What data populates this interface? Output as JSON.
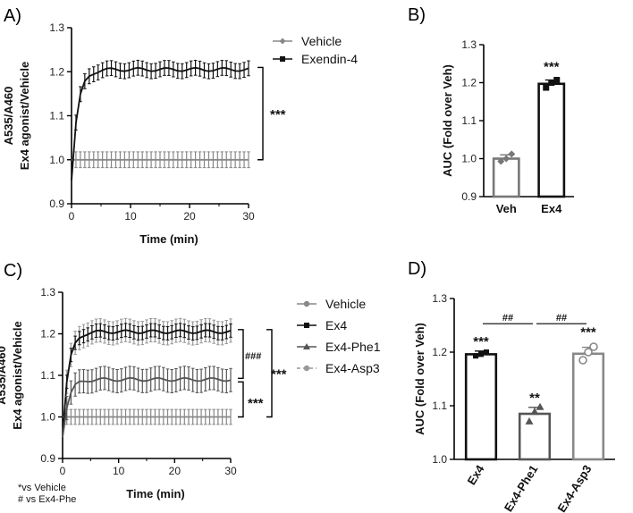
{
  "chart_data": [
    {
      "id": "A",
      "panel_label": "A)",
      "type": "line",
      "xlabel": "Time (min)",
      "ylabel_lines": [
        "A535/A460",
        "Ex4 agonist/Vehicle"
      ],
      "xlim": [
        0,
        30
      ],
      "ylim": [
        0.9,
        1.3
      ],
      "xticks": [
        "0",
        "10",
        "20",
        "30"
      ],
      "yticks": [
        "0.9",
        "1.0",
        "1.1",
        "1.2",
        "1.3"
      ],
      "legend": [
        {
          "label": "Vehicle",
          "color": "#888888",
          "marker": "diamond"
        },
        {
          "label": "Exendin-4",
          "color": "#111111",
          "marker": "square"
        }
      ],
      "series": [
        {
          "name": "Vehicle",
          "kind": "flat",
          "level": 1.0,
          "err": 0.018,
          "color": "#888888"
        },
        {
          "name": "Exendin-4",
          "kind": "rise",
          "plateau": 1.205,
          "err": 0.017,
          "color": "#111111"
        }
      ],
      "annotations": [
        {
          "text": "***",
          "between": [
            "Exendin-4",
            "Vehicle"
          ]
        }
      ]
    },
    {
      "id": "B",
      "panel_label": "B)",
      "type": "bar",
      "ylabel": "AUC (Fold over Veh)",
      "categories": [
        "Veh",
        "Ex4"
      ],
      "values": [
        1.0,
        1.197
      ],
      "errors": [
        0.01,
        0.01
      ],
      "points": [
        [
          0.993,
          1.0,
          1.012
        ],
        [
          1.187,
          1.2,
          1.207
        ]
      ],
      "colors": [
        "#777777",
        "#111111"
      ],
      "ylim": [
        0.9,
        1.3
      ],
      "yticks": [
        "0.9",
        "1.0",
        "1.1",
        "1.2",
        "1.3"
      ],
      "annotations": [
        {
          "category": "Ex4",
          "text": "***"
        }
      ]
    },
    {
      "id": "C",
      "panel_label": "C)",
      "type": "line",
      "xlabel": "Time (min)",
      "ylabel_lines": [
        "A535/A460",
        "Ex4 agonist/Vehicle"
      ],
      "xlim": [
        0,
        30
      ],
      "ylim": [
        0.9,
        1.3
      ],
      "xticks": [
        "0",
        "10",
        "20",
        "30"
      ],
      "yticks": [
        "0.9",
        "1.0",
        "1.1",
        "1.2",
        "1.3"
      ],
      "legend": [
        {
          "label": "Vehicle",
          "color": "#888888",
          "marker": "circle"
        },
        {
          "label": "Ex4",
          "color": "#111111",
          "marker": "square"
        },
        {
          "label": "Ex4-Phe1",
          "color": "#555555",
          "marker": "triangle"
        },
        {
          "label": "Ex4-Asp3",
          "color": "#999999",
          "marker": "circle-dash"
        }
      ],
      "series": [
        {
          "name": "Vehicle",
          "kind": "flat",
          "level": 1.0,
          "err": 0.018,
          "color": "#888888"
        },
        {
          "name": "Ex4-Asp3",
          "kind": "rise",
          "plateau": 1.205,
          "err": 0.028,
          "color": "#999999"
        },
        {
          "name": "Ex4",
          "kind": "rise",
          "plateau": 1.205,
          "err": 0.016,
          "color": "#111111"
        },
        {
          "name": "Ex4-Phe1",
          "kind": "rise",
          "plateau": 1.09,
          "err": 0.028,
          "color": "#555555"
        }
      ],
      "annotations": [
        {
          "text": "###",
          "between": [
            "Ex4",
            "Ex4-Phe1"
          ]
        },
        {
          "text": "***",
          "between": [
            "Ex4-Phe1",
            "Vehicle"
          ]
        },
        {
          "text": "***",
          "between": [
            "Ex4",
            "Vehicle"
          ]
        }
      ],
      "footnote": [
        "*vs Vehicle",
        "# vs Ex4-Phe"
      ]
    },
    {
      "id": "D",
      "panel_label": "D)",
      "type": "bar",
      "ylabel": "AUC (Fold over Veh)",
      "categories": [
        "Ex4",
        "Ex4-Phe1",
        "Ex4-Asp3"
      ],
      "values": [
        1.196,
        1.085,
        1.197
      ],
      "errors": [
        0.006,
        0.012,
        0.012
      ],
      "points": [
        [
          1.193,
          1.196,
          1.2
        ],
        [
          1.071,
          1.089,
          1.098
        ],
        [
          1.185,
          1.2,
          1.21
        ]
      ],
      "colors": [
        "#111111",
        "#555555",
        "#888888"
      ],
      "ylim": [
        1.0,
        1.3
      ],
      "yticks": [
        "1.0",
        "1.1",
        "1.2",
        "1.3"
      ],
      "annotations": [
        {
          "category": "Ex4",
          "text": "***"
        },
        {
          "category": "Ex4-Phe1",
          "text": "**"
        },
        {
          "category": "Ex4-Asp3",
          "text": "***"
        }
      ],
      "brackets": [
        {
          "from": "Ex4",
          "to": "Ex4-Phe1",
          "text": "##"
        },
        {
          "from": "Ex4-Phe1",
          "to": "Ex4-Asp3",
          "text": "##"
        }
      ]
    }
  ]
}
